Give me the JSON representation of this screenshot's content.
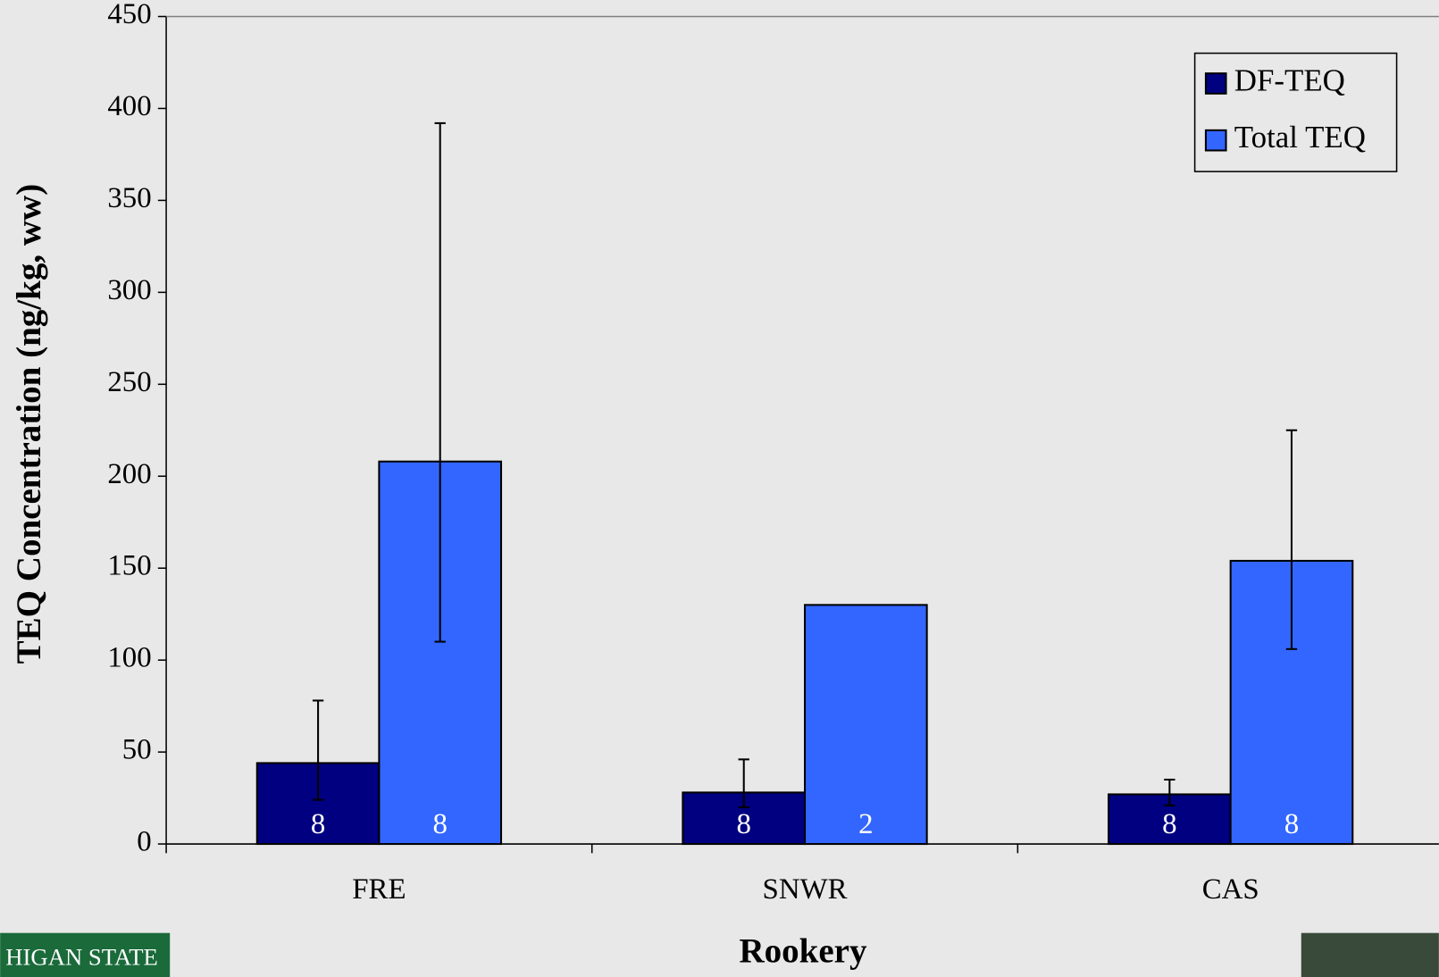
{
  "chart_data": {
    "type": "bar",
    "y_axis_label": "TEQ Concentration (ng/kg, ww)",
    "x_axis_label": "Rookery",
    "categories": [
      "FRE",
      "SNWR",
      "CAS"
    ],
    "series": [
      {
        "name": "DF-TEQ",
        "color": "#000080",
        "values": [
          44,
          28,
          27
        ],
        "error_plus": [
          34,
          18,
          8
        ],
        "error_minus": [
          20,
          8,
          6
        ],
        "sample_sizes": [
          8,
          8,
          8
        ]
      },
      {
        "name": "Total TEQ",
        "color": "#3366ff",
        "values": [
          208,
          130,
          154
        ],
        "error_plus": [
          184,
          null,
          71
        ],
        "error_minus": [
          98,
          null,
          48
        ],
        "sample_sizes": [
          8,
          2,
          8
        ]
      }
    ],
    "ylim": [
      0,
      450
    ],
    "yticks": [
      0,
      50,
      100,
      150,
      200,
      250,
      300,
      350,
      400,
      450
    ],
    "legend": "top-right",
    "logo_text": "HIGAN STATE"
  }
}
